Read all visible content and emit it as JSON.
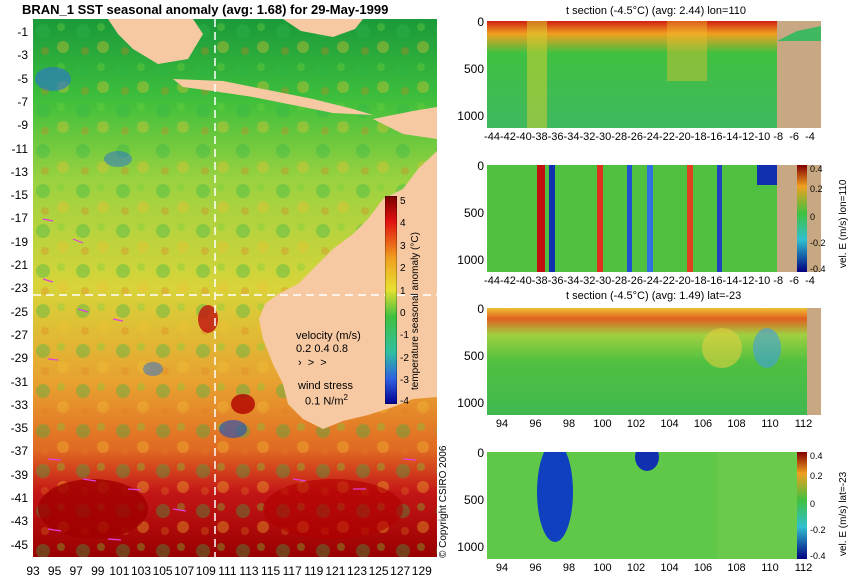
{
  "map": {
    "title": "BRAN_1 SST seasonal anomaly (avg: 1.68) for 29-May-1999",
    "lat_ticks": [
      "-1",
      "-3",
      "-5",
      "-7",
      "-9",
      "-11",
      "-13",
      "-15",
      "-17",
      "-19",
      "-21",
      "-23",
      "-25",
      "-27",
      "-29",
      "-31",
      "-33",
      "-35",
      "-37",
      "-39",
      "-41",
      "-43",
      "-45"
    ],
    "lon_ticks": [
      "93",
      "95",
      "97",
      "99",
      "101",
      "103",
      "105",
      "107",
      "109",
      "111",
      "113",
      "115",
      "117",
      "119",
      "121",
      "123",
      "125",
      "127",
      "129"
    ],
    "colorbar": {
      "label": "temperature seasonal anomaly (°C)",
      "ticks": [
        "5",
        "4",
        "3",
        "2",
        "1",
        "0",
        "-1",
        "-2",
        "-3",
        "-4"
      ]
    },
    "velocity_legend": {
      "title": "velocity (m/s)",
      "values": "0.2 0.4 0.8"
    },
    "wind_legend": {
      "title": "wind stress",
      "value": "0.1 N/m",
      "superscript": "2"
    },
    "copyright": "© Copyright CSIRO 2006"
  },
  "chart_data": [
    {
      "type": "heatmap",
      "title": "BRAN_1 SST seasonal anomaly (avg: 1.68) for 29-May-1999",
      "x_ticks": [
        93,
        95,
        97,
        99,
        101,
        103,
        105,
        107,
        109,
        111,
        113,
        115,
        117,
        119,
        121,
        123,
        125,
        127,
        129
      ],
      "y_ticks": [
        -1,
        -3,
        -5,
        -7,
        -9,
        -11,
        -13,
        -15,
        -17,
        -19,
        -21,
        -23,
        -25,
        -27,
        -29,
        -31,
        -33,
        -35,
        -37,
        -39,
        -41,
        -43,
        -45
      ],
      "xlim": [
        93,
        130
      ],
      "ylim": [
        -45,
        0
      ],
      "colorbar": {
        "label": "temperature seasonal anomaly (°C)",
        "range": [
          -4,
          5
        ]
      },
      "section_lines": {
        "lon": 110,
        "lat": -23
      }
    },
    {
      "type": "heatmap",
      "title": "t section (-4.5°C) (avg: 2.44) lon=110",
      "x_ticks": [
        "-44",
        "-42",
        "-40",
        "-38",
        "-36",
        "-34",
        "-32",
        "-30",
        "-28",
        "-26",
        "-24",
        "-22",
        "-20",
        "-18",
        "-16",
        "-14",
        "-12",
        "-10",
        "-8",
        "-6",
        "-4"
      ],
      "y_ticks": [
        "0",
        "500",
        "1000"
      ]
    },
    {
      "type": "heatmap",
      "title": "",
      "x_ticks": [
        "-44",
        "-42",
        "-40",
        "-38",
        "-36",
        "-34",
        "-32",
        "-30",
        "-28",
        "-26",
        "-24",
        "-22",
        "-20",
        "-18",
        "-16",
        "-14",
        "-12",
        "-10",
        "-8",
        "-6",
        "-4"
      ],
      "y_ticks": [
        "0",
        "500",
        "1000"
      ],
      "colorbar": {
        "label": "vel. E (m/s) lon=110",
        "ticks": [
          "0.4",
          "0.2",
          "0",
          "-0.2",
          "-0.4"
        ]
      }
    },
    {
      "type": "heatmap",
      "title": "t section (-4.5°C) (avg: 1.49) lat=-23",
      "x_ticks": [
        "94",
        "96",
        "98",
        "100",
        "102",
        "104",
        "106",
        "108",
        "110",
        "112"
      ],
      "y_ticks": [
        "0",
        "500",
        "1000"
      ]
    },
    {
      "type": "heatmap",
      "title": "",
      "x_ticks": [
        "94",
        "96",
        "98",
        "100",
        "102",
        "104",
        "106",
        "108",
        "110",
        "112"
      ],
      "y_ticks": [
        "0",
        "500",
        "1000"
      ],
      "colorbar": {
        "label": "vel. E (m/s) lat=-23",
        "ticks": [
          "0.4",
          "0.2",
          "0",
          "-0.2",
          "-0.4"
        ]
      }
    }
  ]
}
